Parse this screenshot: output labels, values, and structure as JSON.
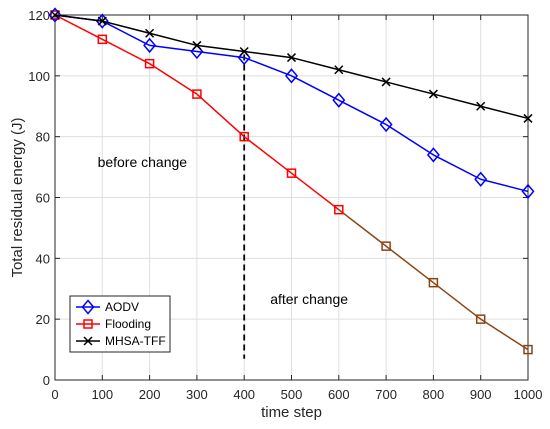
{
  "chart_data": {
    "type": "line",
    "xlabel": "time step",
    "ylabel": "Total residual energy (J)",
    "xlim": [
      0,
      1000
    ],
    "ylim": [
      0,
      120
    ],
    "x_ticks": [
      0,
      100,
      200,
      300,
      400,
      500,
      600,
      700,
      800,
      900,
      1000
    ],
    "y_ticks": [
      0,
      20,
      40,
      60,
      80,
      100,
      120
    ],
    "grid": true,
    "legend_position": "bottom-left",
    "x": [
      0,
      100,
      200,
      300,
      400,
      500,
      600,
      700,
      800,
      900,
      1000
    ],
    "series": [
      {
        "name": "AODV",
        "color": "#0000ff",
        "marker": "diamond",
        "values": [
          120,
          118,
          110,
          108,
          106,
          100,
          92,
          84,
          74,
          66,
          62
        ]
      },
      {
        "name": "Flooding",
        "color": "#ff0000",
        "secondary_color": "#8b4513",
        "marker": "square",
        "values": [
          120,
          112,
          104,
          94,
          80,
          68,
          56,
          44,
          32,
          20,
          10
        ]
      },
      {
        "name": "MHSA-TFF",
        "color": "#000000",
        "marker": "x",
        "values": [
          120,
          118,
          114,
          110,
          108,
          106,
          102,
          98,
          94,
          90,
          86
        ]
      }
    ],
    "change_line": {
      "x": 400,
      "y_from": 7,
      "y_to": 107
    },
    "annotations": [
      {
        "text": "before change",
        "x": 90,
        "y": 70
      },
      {
        "text": "after change",
        "x": 455,
        "y": 25
      }
    ]
  }
}
